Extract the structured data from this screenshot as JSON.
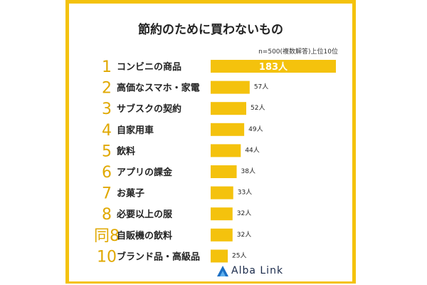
{
  "title": "節約のために買わないもの",
  "note": "n=500(複数解答)上位10位",
  "logo": {
    "text": "Alba Link"
  },
  "colors": {
    "accent": "#f4c20d",
    "rank": "#e0a800",
    "text": "#222222"
  },
  "chart_data": {
    "type": "bar",
    "orientation": "horizontal",
    "ranks": [
      "1",
      "2",
      "3",
      "4",
      "5",
      "6",
      "7",
      "8",
      "同8",
      "10"
    ],
    "categories": [
      "コンビニの商品",
      "高価なスマホ・家電",
      "サブスクの契約",
      "自家用車",
      "飲料",
      "アプリの課金",
      "お菓子",
      "必要以上の服",
      "自販機の飲料",
      "ブランド品・高級品"
    ],
    "values": [
      183,
      57,
      52,
      49,
      44,
      38,
      33,
      32,
      32,
      25
    ],
    "value_labels": [
      "183人",
      "57人",
      "52人",
      "49人",
      "44人",
      "38人",
      "33人",
      "32人",
      "32人",
      "25人"
    ],
    "xlim": [
      0,
      183
    ]
  }
}
